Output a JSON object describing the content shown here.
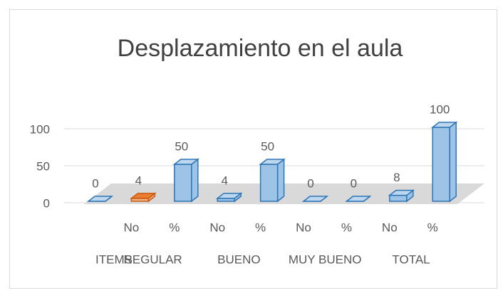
{
  "chart_data": {
    "type": "bar3d",
    "title": "Desplazamiento en el aula",
    "categories": [
      null,
      "No",
      "%",
      "No",
      "%",
      "No",
      "%",
      "No",
      "%"
    ],
    "groups": [
      "ITEMS",
      "REGULAR",
      "BUENO",
      "MUY BUENO",
      "TOTAL"
    ],
    "values": [
      0,
      4,
      50,
      4,
      50,
      0,
      0,
      8,
      100
    ],
    "colors": [
      "#5b9bd5",
      "#ed7d31",
      "#5b9bd5",
      "#5b9bd5",
      "#5b9bd5",
      "#5b9bd5",
      "#5b9bd5",
      "#5b9bd5",
      "#5b9bd5"
    ],
    "ylim": [
      0,
      100
    ],
    "yticks": [
      0,
      50,
      100
    ],
    "grid": true
  }
}
